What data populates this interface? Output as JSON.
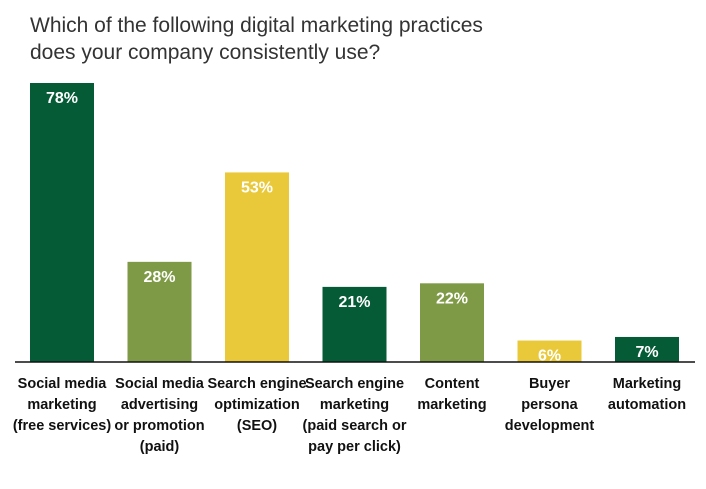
{
  "chart_data": {
    "type": "bar",
    "title": "Which of the following digital marketing practices\ndoes your company consistently use?",
    "categories": [
      "Social media marketing (free services)",
      "Social media advertising or promotion (paid)",
      "Search engine optimization (SEO)",
      "Search engine marketing (paid search or pay per click)",
      "Content marketing",
      "Buyer persona development",
      "Marketing automation"
    ],
    "category_lines": [
      [
        "Social media",
        "marketing",
        "(free services)"
      ],
      [
        "Social media",
        "advertising",
        "or promotion",
        "(paid)"
      ],
      [
        "Search engine",
        "optimization",
        "(SEO)"
      ],
      [
        "Search engine",
        "marketing",
        "(paid search or",
        "pay per click)"
      ],
      [
        "Content",
        "marketing"
      ],
      [
        "Buyer",
        "persona",
        "development"
      ],
      [
        "Marketing",
        "automation"
      ]
    ],
    "values": [
      78,
      28,
      53,
      21,
      22,
      6,
      7
    ],
    "value_labels": [
      "78%",
      "28%",
      "53%",
      "21%",
      "22%",
      "6%",
      "7%"
    ],
    "bar_colors": [
      "#055b36",
      "#7f9a46",
      "#e9c93a",
      "#055b36",
      "#7f9a46",
      "#e9c93a",
      "#055b36"
    ],
    "ylim": [
      0,
      78
    ],
    "grid": false,
    "legend": "none",
    "axis_color": "#111111"
  }
}
